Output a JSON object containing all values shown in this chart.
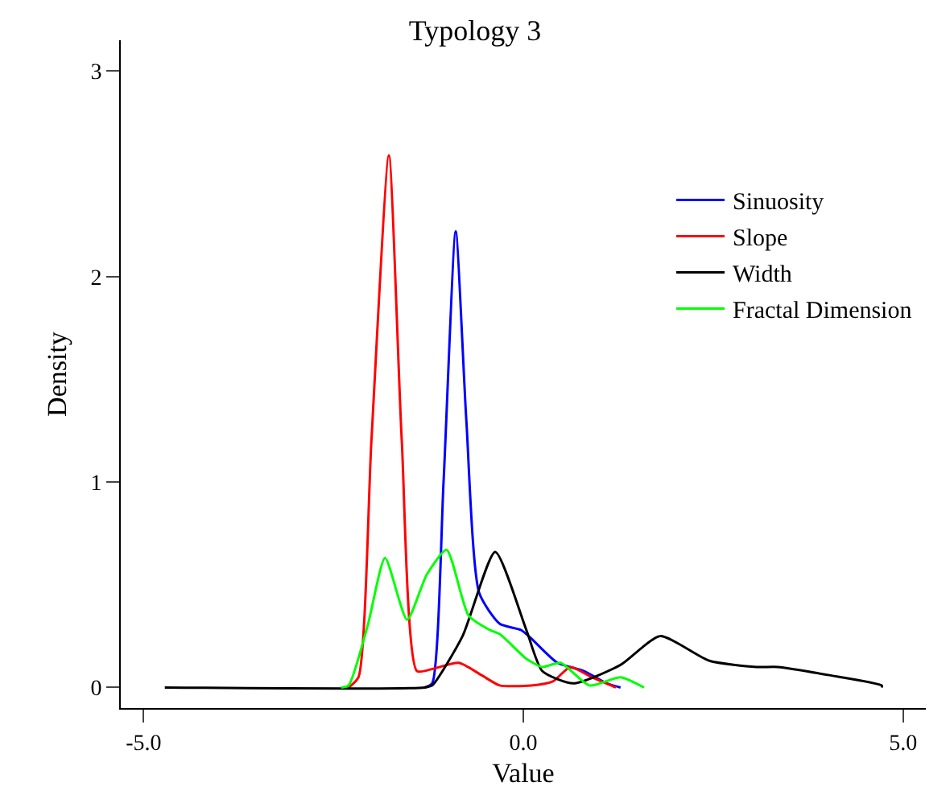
{
  "chart_data": {
    "type": "line",
    "title": "Typology 3",
    "xlabel": "Value",
    "ylabel": "Density",
    "xlim": [
      -5.3,
      5.3
    ],
    "ylim": [
      -0.1,
      3.15
    ],
    "xticks": [
      {
        "value": -5,
        "label": "-5.0"
      },
      {
        "value": 0,
        "label": "0.0"
      },
      {
        "value": 5,
        "label": "5.0"
      }
    ],
    "yticks": [
      0,
      1,
      2,
      3
    ],
    "legend": "top right",
    "marker": "none",
    "line_style": "solid",
    "series": [
      {
        "name": "Sinuosity",
        "color": "#0000ff",
        "x": [
          -1.3,
          -1.2,
          -1.05,
          -0.89,
          -0.75,
          -0.58,
          -0.31,
          -0.03,
          0.1,
          0.45,
          0.8,
          1.1,
          1.28
        ],
        "values": [
          0,
          0.02,
          1.0,
          2.22,
          1.3,
          0.46,
          0.31,
          0.28,
          0.24,
          0.12,
          0.08,
          0.02,
          0
        ]
      },
      {
        "name": "Slope",
        "color": "#ff0000",
        "x": [
          -2.3,
          -2.17,
          -2.0,
          -1.77,
          -1.6,
          -1.4,
          -1.2,
          -0.85,
          -0.55,
          -0.31,
          0.1,
          0.39,
          0.62,
          0.9,
          1.22
        ],
        "values": [
          0,
          0.05,
          1.2,
          2.59,
          1.2,
          0.08,
          0.09,
          0.12,
          0.06,
          0.01,
          0.01,
          0.03,
          0.1,
          0.05,
          0
        ]
      },
      {
        "name": "Width",
        "color": "#000000",
        "x": [
          -4.72,
          -1.3,
          -1.2,
          -0.8,
          -0.37,
          0.04,
          0.25,
          0.66,
          1.28,
          1.8,
          2.45,
          3.07,
          3.35,
          4.03,
          4.72,
          4.72
        ],
        "values": [
          0,
          0,
          0.01,
          0.25,
          0.66,
          0.28,
          0.08,
          0.02,
          0.11,
          0.25,
          0.13,
          0.1,
          0.1,
          0.06,
          0.01,
          0
        ]
      },
      {
        "name": "Fractal Dimension",
        "color": "#00ff00",
        "x": [
          -2.4,
          -2.3,
          -2.05,
          -1.82,
          -1.53,
          -1.27,
          -1.01,
          -0.72,
          -0.44,
          -0.31,
          0.04,
          0.25,
          0.49,
          0.87,
          1.28,
          1.59
        ],
        "values": [
          0,
          0.01,
          0.3,
          0.63,
          0.33,
          0.55,
          0.67,
          0.35,
          0.28,
          0.26,
          0.14,
          0.1,
          0.12,
          0.01,
          0.05,
          0
        ]
      }
    ]
  }
}
